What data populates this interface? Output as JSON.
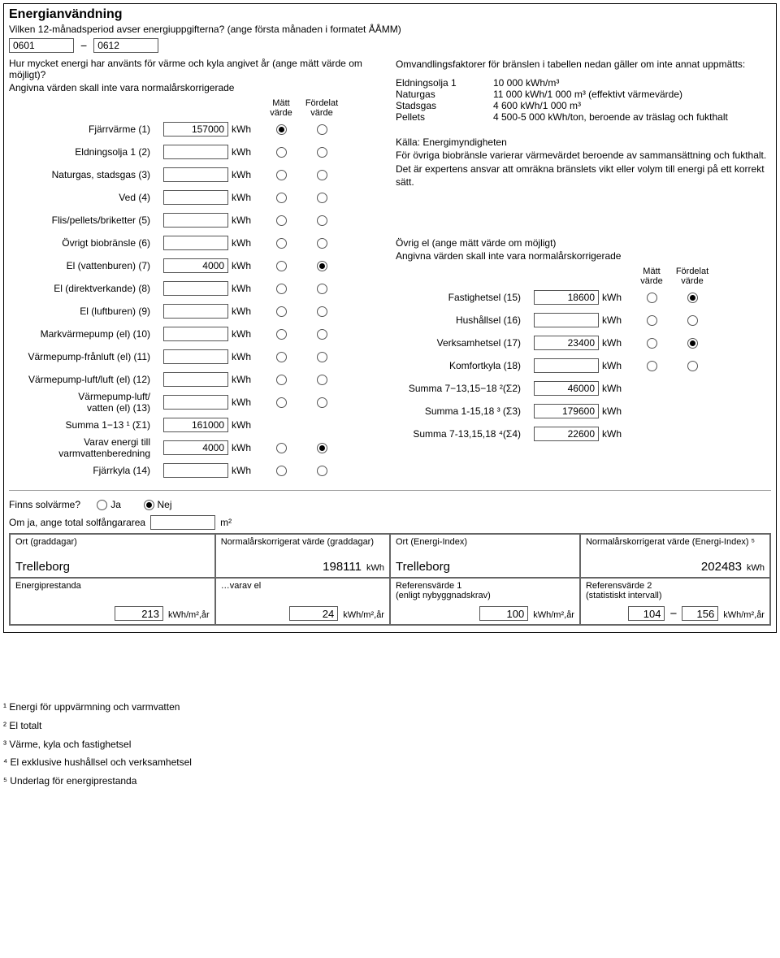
{
  "title": "Energianvändning",
  "period_question": "Vilken 12-månadsperiod avser energiuppgifterna? (ange första månaden i formatet ÅÅMM)",
  "period_from": "0601",
  "period_to": "0612",
  "left_q1": "Hur mycket energi har använts för värme och kyla angivet år (ange mätt värde om möjligt)?",
  "left_q2": "Angivna värden skall inte vara normalårskorrigerade",
  "col_matt": "Mätt värde",
  "col_ford": "Fördelat värde",
  "rows": [
    {
      "label": "Fjärrvärme (1)",
      "value": "157000",
      "unit": "kWh",
      "m": true,
      "f": false
    },
    {
      "label": "Eldningsolja 1 (2)",
      "value": "",
      "unit": "kWh",
      "m": null,
      "f": null
    },
    {
      "label": "Naturgas, stadsgas (3)",
      "value": "",
      "unit": "kWh",
      "m": null,
      "f": null
    },
    {
      "label": "Ved (4)",
      "value": "",
      "unit": "kWh",
      "m": null,
      "f": null
    },
    {
      "label": "Flis/pellets/briketter (5)",
      "value": "",
      "unit": "kWh",
      "m": null,
      "f": null
    },
    {
      "label": "Övrigt biobränsle (6)",
      "value": "",
      "unit": "kWh",
      "m": null,
      "f": null
    },
    {
      "label": "El (vattenburen) (7)",
      "value": "4000",
      "unit": "kWh",
      "m": false,
      "f": true
    },
    {
      "label": "El (direktverkande) (8)",
      "value": "",
      "unit": "kWh",
      "m": null,
      "f": null
    },
    {
      "label": "El (luftburen) (9)",
      "value": "",
      "unit": "kWh",
      "m": null,
      "f": null
    },
    {
      "label": "Markvärmepump (el) (10)",
      "value": "",
      "unit": "kWh",
      "m": null,
      "f": null
    },
    {
      "label": "Värmepump-frånluft (el) (11)",
      "value": "",
      "unit": "kWh",
      "m": null,
      "f": null
    },
    {
      "label": "Värmepump-luft/luft (el) (12)",
      "value": "",
      "unit": "kWh",
      "m": null,
      "f": null
    },
    {
      "label": "Värmepump-luft/\nvatten (el) (13)",
      "value": "",
      "unit": "kWh",
      "m": null,
      "f": null
    }
  ],
  "sum1_label": "Summa 1−13 ¹ (Σ1)",
  "sum1_value": "161000",
  "varav_label": "Varav energi till varmvattenberedning",
  "varav_value": "4000",
  "varav_m": false,
  "varav_f": true,
  "fjarrkyla_label": "Fjärrkyla (14)",
  "fjarrkyla_value": "",
  "conv_intro": "Omvandlingsfaktorer för bränslen i tabellen nedan gäller om inte annat uppmätts:",
  "conv": [
    {
      "k": "Eldningsolja 1",
      "v": "10 000 kWh/m³"
    },
    {
      "k": "Naturgas",
      "v": "11 000 kWh/1 000 m³ (effektivt värmevärde)"
    },
    {
      "k": "Stadsgas",
      "v": "4 600 kWh/1 000 m³"
    },
    {
      "k": "Pellets",
      "v": "4 500-5 000 kWh/ton, beroende av träslag och fukthalt"
    }
  ],
  "conv_source": "Källa: Energimyndigheten",
  "conv_note": "För övriga biobränsle varierar värmevärdet beroende av sammansättning och fukthalt. Det är expertens ansvar att omräkna bränslets vikt eller volym till energi på ett korrekt sätt.",
  "right_q1": "Övrig el (ange mätt värde om möjligt)",
  "right_q2": "Angivna värden skall inte vara normalårskorrigerade",
  "right_rows": [
    {
      "label": "Fastighetsel (15)",
      "value": "18600",
      "unit": "kWh",
      "m": false,
      "f": true
    },
    {
      "label": "Hushållsel (16)",
      "value": "",
      "unit": "kWh",
      "m": null,
      "f": null
    },
    {
      "label": "Verksamhetsel (17)",
      "value": "23400",
      "unit": "kWh",
      "m": false,
      "f": true
    },
    {
      "label": "Komfortkyla (18)",
      "value": "",
      "unit": "kWh",
      "m": null,
      "f": null
    }
  ],
  "sum2_label": "Summa 7−13,15−18 ²(Σ2)",
  "sum2_value": "46000",
  "sum3_label": "Summa 1-15,18 ³ (Σ3)",
  "sum3_value": "179600",
  "sum4_label": "Summa 7-13,15,18 ⁴(Σ4)",
  "sum4_value": "22600",
  "solar_q": "Finns solvärme?",
  "solar_yes": "Ja",
  "solar_no": "Nej",
  "solar_sel": "no",
  "area_label": "Om ja, ange total solfångararea",
  "area_unit": "m²",
  "grid_r1": [
    {
      "h": "Ort (graddagar)",
      "big": "Trelleborg",
      "w": "27%",
      "align": "left"
    },
    {
      "h": "Normalårskorrigerat värde (graddagar)",
      "big": "198111",
      "suffix": "kWh",
      "w": "23%",
      "align": "right"
    },
    {
      "h": "Ort (Energi-Index)",
      "big": "Trelleborg",
      "w": "25%",
      "align": "left"
    },
    {
      "h": "Normalårskorrigerat värde (Energi-Index) ⁵",
      "big": "202483",
      "suffix": "kWh",
      "w": "25%",
      "align": "right"
    }
  ],
  "grid_r2": [
    {
      "h": "Energiprestanda",
      "big_input": "213",
      "suffix": "kWh/m²,år",
      "w": "27%"
    },
    {
      "h": "…varav el",
      "big_input": "24",
      "suffix": "kWh/m²,år",
      "w": "23%"
    },
    {
      "h": "Referensvärde 1\n(enligt nybyggnadskrav)",
      "big_input": "100",
      "suffix": "kWh/m²,år",
      "w": "25%"
    },
    {
      "h": "Referensvärde 2\n(statistiskt intervall)",
      "big_pair": [
        "104",
        "156"
      ],
      "suffix": "kWh/m²,år",
      "w": "25%"
    }
  ],
  "footnotes": [
    "¹ Energi för uppvärmning och varmvatten",
    "² El totalt",
    "³ Värme, kyla och fastighetsel",
    "⁴ El exklusive hushållsel och verksamhetsel",
    "⁵ Underlag för energiprestanda"
  ],
  "kwh": "kWh"
}
